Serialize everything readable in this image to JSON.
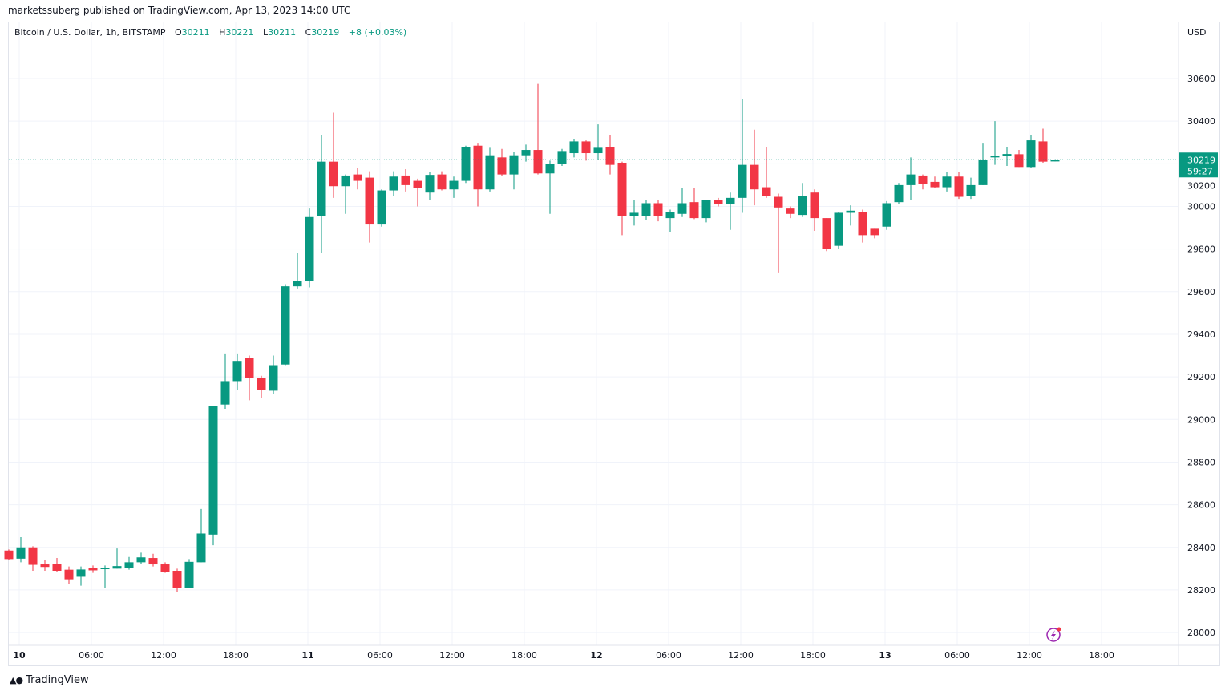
{
  "header": {
    "published": "marketssuberg published on TradingView.com, Apr 13, 2023 14:00 UTC"
  },
  "legend": {
    "symbol": "Bitcoin / U.S. Dollar, 1h, BITSTAMP",
    "o_label": "O",
    "o": "30211",
    "h_label": "H",
    "h": "30221",
    "l_label": "L",
    "l": "30211",
    "c_label": "C",
    "c": "30219",
    "change": "+8 (+0.03%)"
  },
  "price_axis": {
    "currency": "USD",
    "last_price": "30219",
    "countdown": "59:27"
  },
  "footer": {
    "brand": "TradingView"
  },
  "icons": {
    "snapshot": "lightning-icon"
  },
  "colors": {
    "up": "#089981",
    "down": "#f23645",
    "grid": "#f0f3fa",
    "accent": "#9c27b0"
  },
  "chart_data": {
    "type": "candlestick",
    "title": "Bitcoin / U.S. Dollar, 1h, BITSTAMP",
    "ylabel": "USD",
    "ylim": [
      27950,
      30780
    ],
    "yticks": [
      28000,
      28200,
      28400,
      28600,
      28800,
      29000,
      29200,
      29400,
      29600,
      29800,
      30000,
      30200,
      30400,
      30600
    ],
    "xticks": [
      "10",
      "06:00",
      "12:00",
      "18:00",
      "11",
      "06:00",
      "12:00",
      "18:00",
      "12",
      "06:00",
      "12:00",
      "18:00",
      "13",
      "06:00",
      "12:00",
      "18:00"
    ],
    "grid": true,
    "interval": "1h",
    "first_time": "2023-04-09 23:00",
    "ohlc": [
      [
        28385,
        28390,
        28340,
        28345
      ],
      [
        28347,
        28448,
        28330,
        28400
      ],
      [
        28400,
        28405,
        28290,
        28318
      ],
      [
        28320,
        28340,
        28290,
        28308
      ],
      [
        28323,
        28350,
        28285,
        28290
      ],
      [
        28295,
        28310,
        28230,
        28250
      ],
      [
        28262,
        28310,
        28220,
        28296
      ],
      [
        28305,
        28315,
        28280,
        28292
      ],
      [
        28298,
        28315,
        28210,
        28305
      ],
      [
        28300,
        28395,
        28300,
        28312
      ],
      [
        28305,
        28355,
        28295,
        28330
      ],
      [
        28330,
        28375,
        28320,
        28353
      ],
      [
        28350,
        28370,
        28310,
        28320
      ],
      [
        28320,
        28330,
        28280,
        28285
      ],
      [
        28290,
        28300,
        28190,
        28210
      ],
      [
        28208,
        28345,
        28208,
        28332
      ],
      [
        28330,
        28580,
        28330,
        28465
      ],
      [
        28460,
        29065,
        28410,
        29065
      ],
      [
        29070,
        29310,
        29050,
        29180
      ],
      [
        29180,
        29310,
        29140,
        29275
      ],
      [
        29290,
        29300,
        29090,
        29195
      ],
      [
        29195,
        29205,
        29100,
        29140
      ],
      [
        29135,
        29300,
        29120,
        29255
      ],
      [
        29258,
        29635,
        29255,
        29625
      ],
      [
        29625,
        29780,
        29615,
        29650
      ],
      [
        29650,
        29990,
        29620,
        29950
      ],
      [
        29955,
        30335,
        29780,
        30210
      ],
      [
        30210,
        30440,
        30040,
        30095
      ],
      [
        30095,
        30150,
        29965,
        30145
      ],
      [
        30150,
        30180,
        30080,
        30120
      ],
      [
        30135,
        30165,
        29830,
        29915
      ],
      [
        29915,
        30080,
        29905,
        30075
      ],
      [
        30075,
        30165,
        30050,
        30140
      ],
      [
        30145,
        30175,
        30070,
        30100
      ],
      [
        30120,
        30130,
        30000,
        30085
      ],
      [
        30065,
        30160,
        30030,
        30148
      ],
      [
        30150,
        30165,
        30075,
        30080
      ],
      [
        30080,
        30140,
        30040,
        30120
      ],
      [
        30120,
        30285,
        30110,
        30280
      ],
      [
        30285,
        30295,
        30000,
        30080
      ],
      [
        30080,
        30275,
        30070,
        30240
      ],
      [
        30230,
        30270,
        30145,
        30150
      ],
      [
        30150,
        30255,
        30080,
        30240
      ],
      [
        30240,
        30290,
        30210,
        30265
      ],
      [
        30265,
        30575,
        30150,
        30155
      ],
      [
        30155,
        30215,
        29965,
        30200
      ],
      [
        30200,
        30270,
        30190,
        30260
      ],
      [
        30250,
        30315,
        30230,
        30305
      ],
      [
        30305,
        30310,
        30215,
        30250
      ],
      [
        30250,
        30385,
        30220,
        30275
      ],
      [
        30280,
        30335,
        30150,
        30195
      ],
      [
        30205,
        30210,
        29865,
        29955
      ],
      [
        29955,
        30030,
        29910,
        29970
      ],
      [
        29955,
        30030,
        29935,
        30015
      ],
      [
        30015,
        30030,
        29930,
        29955
      ],
      [
        29945,
        29985,
        29880,
        29975
      ],
      [
        29965,
        30085,
        29950,
        30015
      ],
      [
        30020,
        30085,
        29940,
        29945
      ],
      [
        29945,
        30030,
        29925,
        30030
      ],
      [
        30030,
        30040,
        30000,
        30010
      ],
      [
        30010,
        30065,
        29890,
        30040
      ],
      [
        30040,
        30505,
        29970,
        30195
      ],
      [
        30195,
        30360,
        30005,
        30080
      ],
      [
        30090,
        30280,
        30040,
        30050
      ],
      [
        30045,
        30060,
        29690,
        29995
      ],
      [
        29990,
        30000,
        29945,
        29965
      ],
      [
        29960,
        30110,
        29950,
        30050
      ],
      [
        30065,
        30080,
        29885,
        29945
      ],
      [
        29945,
        29945,
        29790,
        29800
      ],
      [
        29815,
        29975,
        29800,
        29970
      ],
      [
        29970,
        30005,
        29910,
        29980
      ],
      [
        29975,
        29985,
        29830,
        29865
      ],
      [
        29895,
        29895,
        29850,
        29865
      ],
      [
        29905,
        30025,
        29890,
        30015
      ],
      [
        30020,
        30110,
        30010,
        30100
      ],
      [
        30100,
        30230,
        30030,
        30150
      ],
      [
        30145,
        30150,
        30080,
        30105
      ],
      [
        30115,
        30140,
        30085,
        30090
      ],
      [
        30090,
        30160,
        30070,
        30140
      ],
      [
        30140,
        30160,
        30035,
        30045
      ],
      [
        30050,
        30135,
        30035,
        30100
      ],
      [
        30100,
        30295,
        30100,
        30220
      ],
      [
        30230,
        30400,
        30195,
        30238
      ],
      [
        30243,
        30280,
        30190,
        30246
      ],
      [
        30245,
        30265,
        30185,
        30185
      ],
      [
        30185,
        30335,
        30180,
        30310
      ],
      [
        30305,
        30365,
        30205,
        30210
      ],
      [
        30211,
        30221,
        30211,
        30219
      ]
    ]
  }
}
